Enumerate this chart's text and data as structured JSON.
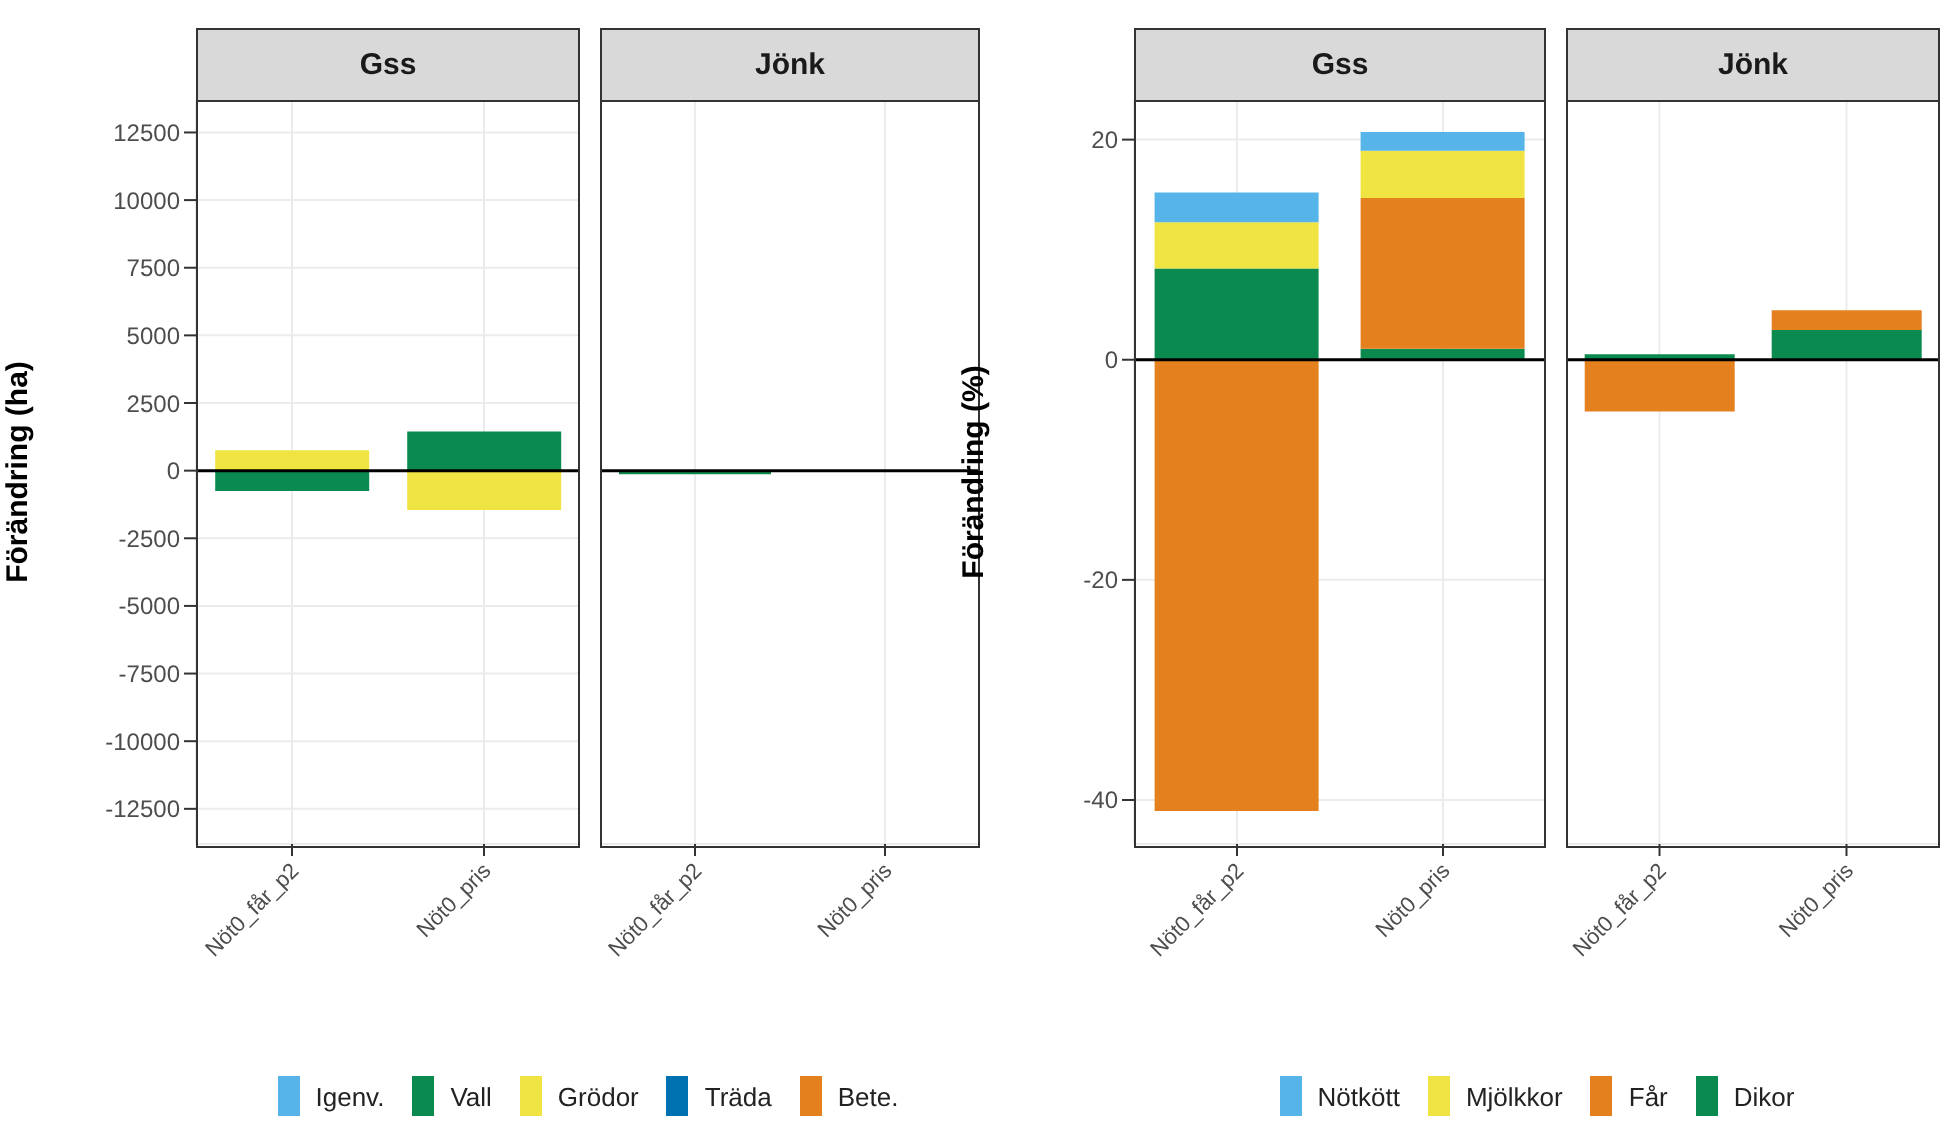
{
  "chart_data": [
    {
      "type": "bar",
      "title": "Gss",
      "ylabel": "Förändring (ha)",
      "categories": [
        "Nöt0_får_p2",
        "Nöt0_pris"
      ],
      "stacked": true,
      "ylim": [
        -13800,
        13700
      ],
      "yticks": [
        -12500,
        -10000,
        -7500,
        -5000,
        -2500,
        0,
        2500,
        5000,
        7500,
        10000,
        12500
      ],
      "grid": true,
      "legend": "bottom",
      "ref_lines": [
        {
          "axis": "y",
          "value": 0,
          "color": "#000000"
        }
      ],
      "series": [
        {
          "name": "Bete.",
          "color": "#e5801e",
          "values": [
            null,
            null
          ]
        },
        {
          "name": "Träda",
          "color": "#0072b2",
          "values": [
            null,
            null
          ]
        },
        {
          "name": "Grödor",
          "color": "#f0e442",
          "values": [
            750,
            -1450
          ]
        },
        {
          "name": "Vall",
          "color": "#0b8a4f",
          "values": [
            -750,
            1450
          ]
        },
        {
          "name": "Igenv.",
          "color": "#56b4e9",
          "values": [
            null,
            null
          ]
        }
      ]
    },
    {
      "type": "bar",
      "title": "Jönk",
      "categories": [
        "Nöt0_får_p2",
        "Nöt0_pris"
      ],
      "stacked": true,
      "ylim": [
        -13800,
        13700
      ],
      "yticks": [
        -12500,
        -10000,
        -7500,
        -5000,
        -2500,
        0,
        2500,
        5000,
        7500,
        10000,
        12500
      ],
      "grid": true,
      "tick_labels": "x",
      "ref_lines": [
        {
          "axis": "y",
          "value": 0,
          "color": "#000000"
        }
      ],
      "series": [
        {
          "color": "#0b8a4f",
          "values": [
            -130,
            null
          ]
        }
      ]
    },
    {
      "type": "bar",
      "title": "Gss",
      "ylabel": "Förändring (%)",
      "categories": [
        "Nöt0_får_p2",
        "Nöt0_pris"
      ],
      "stacked": true,
      "ylim": [
        -44,
        23.6
      ],
      "yticks": [
        -40,
        -20,
        0,
        20
      ],
      "grid": true,
      "legend": "bottom",
      "ref_lines": [
        {
          "axis": "y",
          "value": 0,
          "color": "#000000"
        }
      ],
      "series": [
        {
          "name": "Dikor",
          "color": "#0b8a4f",
          "values": [
            8.3,
            1.0
          ]
        },
        {
          "name": "Får",
          "color": "#e5801e",
          "values": [
            -41,
            13.7
          ]
        },
        {
          "name": "Mjölkkor",
          "color": "#f0e442",
          "values": [
            4.2,
            4.3
          ]
        },
        {
          "name": "Nötkött",
          "color": "#56b4e9",
          "values": [
            2.7,
            1.7
          ]
        }
      ]
    },
    {
      "type": "bar",
      "title": "Jönk",
      "categories": [
        "Nöt0_får_p2",
        "Nöt0_pris"
      ],
      "stacked": true,
      "ylim": [
        -44,
        23.6
      ],
      "yticks": [
        -40,
        -20,
        0,
        20
      ],
      "grid": true,
      "tick_labels": "x",
      "ref_lines": [
        {
          "axis": "y",
          "value": 0,
          "color": "#000000"
        }
      ],
      "series": [
        {
          "color": "#0b8a4f",
          "values": [
            0.5,
            2.7
          ]
        },
        {
          "color": "#e5801e",
          "values": [
            -4.7,
            1.8
          ]
        }
      ]
    }
  ]
}
